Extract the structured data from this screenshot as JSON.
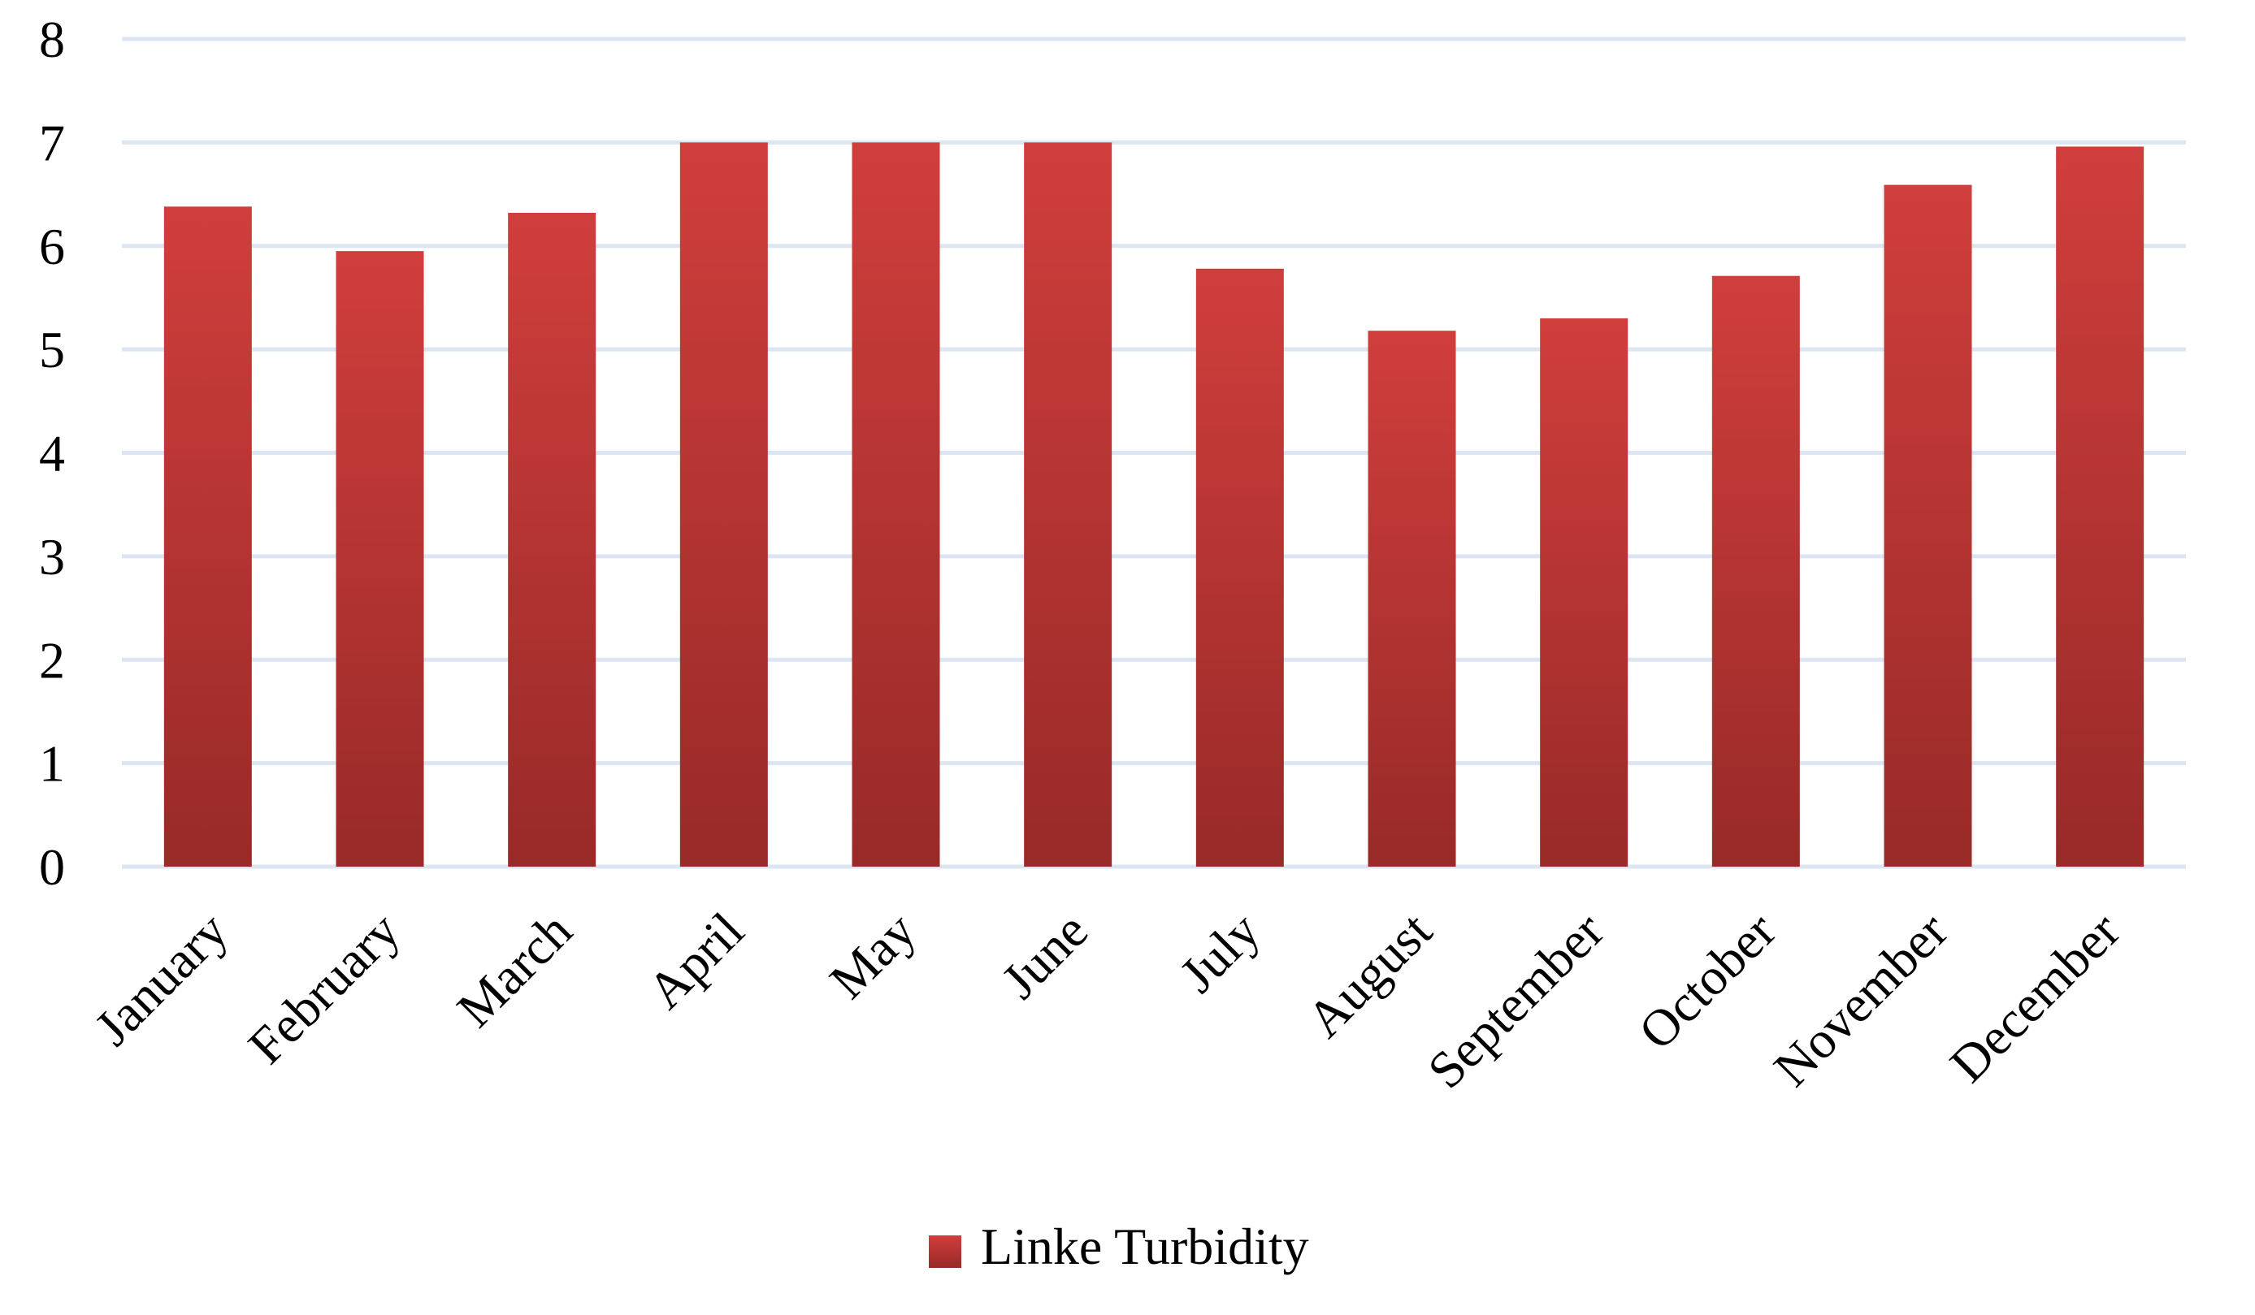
{
  "chart_data": {
    "type": "bar",
    "title": "",
    "xlabel": "",
    "ylabel": "",
    "categories": [
      "January",
      "February",
      "March",
      "April",
      "May",
      "June",
      "July",
      "August",
      "September",
      "October",
      "November",
      "December"
    ],
    "series": [
      {
        "name": "Linke Turbidity",
        "values": [
          6.38,
          5.95,
          6.32,
          7.0,
          7.0,
          7.0,
          5.78,
          5.18,
          5.3,
          5.71,
          6.59,
          6.96
        ]
      }
    ],
    "ylim": [
      0,
      8
    ],
    "yticks": [
      0,
      1,
      2,
      3,
      4,
      5,
      6,
      7,
      8
    ],
    "grid": true,
    "legend_position": "bottom",
    "colors": {
      "bar_top": "#d03e3c",
      "bar_bottom": "#982a28",
      "gridline": "#dbe6f2",
      "text": "#000000"
    }
  }
}
